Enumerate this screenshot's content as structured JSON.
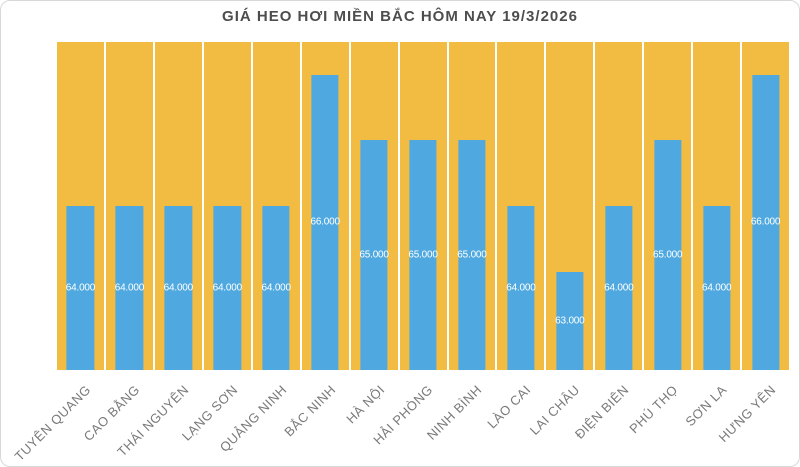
{
  "title": "GIÁ HEO HƠI MIỀN BẮC HÔM NAY 19/3/2026",
  "chart_data": {
    "type": "bar",
    "title": "GIÁ HEO HƠI MIỀN BẮC HÔM NAY 19/3/2026",
    "categories": [
      "TUYÊN QUANG",
      "CAO BẰNG",
      "THÁI NGUYÊN",
      "LẠNG SƠN",
      "QUẢNG NINH",
      "BẮC NINH",
      "HÀ NỘI",
      "HẢI PHÒNG",
      "NINH BÌNH",
      "LÀO CAI",
      "LAI CHÂU",
      "ĐIỆN BIÊN",
      "PHÚ THỌ",
      "SƠN LA",
      "HƯNG YÊN"
    ],
    "values": [
      64000,
      64000,
      64000,
      64000,
      64000,
      66000,
      65000,
      65000,
      65000,
      64000,
      63000,
      64000,
      65000,
      64000,
      66000
    ],
    "value_labels": [
      "64.000",
      "64.000",
      "64.000",
      "64.000",
      "64.000",
      "66.000",
      "65.000",
      "65.000",
      "65.000",
      "64.000",
      "63.000",
      "64.000",
      "65.000",
      "64.000",
      "66.000"
    ],
    "xlabel": "",
    "ylabel": "",
    "ylim": [
      61500,
      66500
    ],
    "value_axis_visible": false,
    "gridlines": false,
    "legend": false,
    "background_columns": true,
    "colors": {
      "bar": "#4FA9E0",
      "background_column": "#F2BC42",
      "value_label": "#FFFFFF",
      "category_label": "#7A7A7A",
      "title": "#4D4D4D"
    }
  }
}
